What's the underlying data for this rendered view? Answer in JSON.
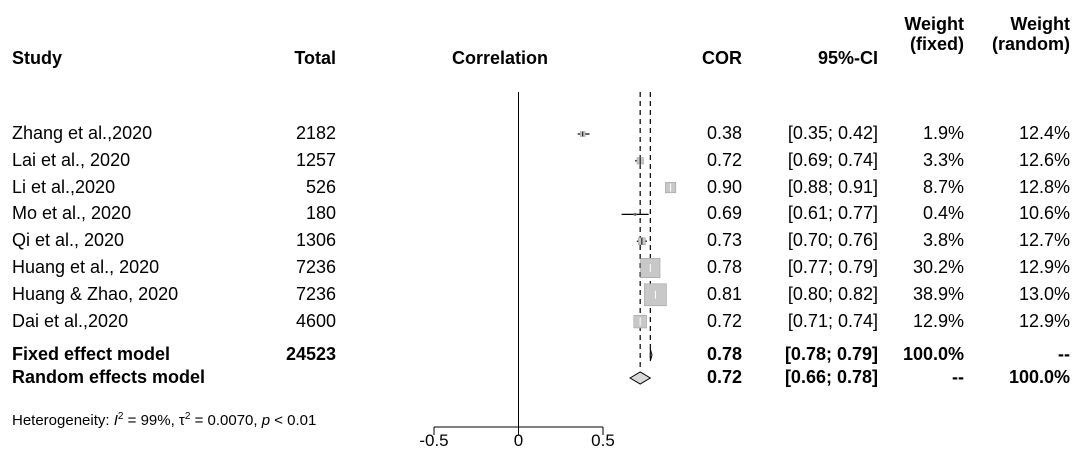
{
  "chart_data": {
    "type": "forest",
    "columns": {
      "study": "Study",
      "total": "Total",
      "correlation": "Correlation",
      "cor": "COR",
      "ci": "95%-CI",
      "weight_fixed_1": "Weight",
      "weight_fixed_2": "(fixed)",
      "weight_random_1": "Weight",
      "weight_random_2": "(random)"
    },
    "studies": [
      {
        "name": "Zhang et al.,2020",
        "total": "2182",
        "cor": 0.38,
        "lo": 0.35,
        "hi": 0.42,
        "cor_text": "0.38",
        "ci_text": "[0.35; 0.42]",
        "w_fixed": "1.9%",
        "w_random": "12.4%",
        "weight": 1.9
      },
      {
        "name": "Lai et al., 2020",
        "total": "1257",
        "cor": 0.72,
        "lo": 0.69,
        "hi": 0.74,
        "cor_text": "0.72",
        "ci_text": "[0.69; 0.74]",
        "w_fixed": "3.3%",
        "w_random": "12.6%",
        "weight": 3.3
      },
      {
        "name": "Li et al.,2020",
        "total": "526",
        "cor": 0.9,
        "lo": 0.88,
        "hi": 0.91,
        "cor_text": "0.90",
        "ci_text": "[0.88; 0.91]",
        "w_fixed": "8.7%",
        "w_random": "12.8%",
        "weight": 8.7
      },
      {
        "name": "Mo et al., 2020",
        "total": "180",
        "cor": 0.69,
        "lo": 0.61,
        "hi": 0.77,
        "cor_text": "0.69",
        "ci_text": "[0.61; 0.77]",
        "w_fixed": "0.4%",
        "w_random": "10.6%",
        "weight": 0.4
      },
      {
        "name": "Qi et al., 2020",
        "total": "1306",
        "cor": 0.73,
        "lo": 0.7,
        "hi": 0.76,
        "cor_text": "0.73",
        "ci_text": "[0.70; 0.76]",
        "w_fixed": "3.8%",
        "w_random": "12.7%",
        "weight": 3.8
      },
      {
        "name": "Huang et al., 2020",
        "total": "7236",
        "cor": 0.78,
        "lo": 0.77,
        "hi": 0.79,
        "cor_text": "0.78",
        "ci_text": "[0.77; 0.79]",
        "w_fixed": "30.2%",
        "w_random": "12.9%",
        "weight": 30.2
      },
      {
        "name": "Huang & Zhao, 2020",
        "total": "7236",
        "cor": 0.81,
        "lo": 0.8,
        "hi": 0.82,
        "cor_text": "0.81",
        "ci_text": "[0.80; 0.82]",
        "w_fixed": "38.9%",
        "w_random": "13.0%",
        "weight": 38.9
      },
      {
        "name": "Dai et al.,2020",
        "total": "4600",
        "cor": 0.72,
        "lo": 0.71,
        "hi": 0.74,
        "cor_text": "0.72",
        "ci_text": "[0.71; 0.74]",
        "w_fixed": "12.9%",
        "w_random": "12.9%",
        "weight": 12.9
      }
    ],
    "fixed": {
      "name": "Fixed effect model",
      "total": "24523",
      "cor": 0.78,
      "lo": 0.78,
      "hi": 0.79,
      "cor_text": "0.78",
      "ci_text": "[0.78; 0.79]",
      "w_fixed": "100.0%",
      "w_random": "--"
    },
    "random": {
      "name": "Random effects model",
      "total": "",
      "cor": 0.72,
      "lo": 0.66,
      "hi": 0.78,
      "cor_text": "0.72",
      "ci_text": "[0.66; 0.78]",
      "w_fixed": "--",
      "w_random": "100.0%"
    },
    "heterogeneity": {
      "prefix": "Heterogeneity: ",
      "i2_label": "I",
      "i2_value": " = 99%, ",
      "tau2_label": "τ",
      "tau2_value": " = 0.0070, ",
      "p_label": "p",
      "p_value": " < 0.01"
    },
    "xaxis": {
      "range": [
        -0.5,
        0.5
      ],
      "ticks": [
        -0.5,
        0,
        0.5
      ],
      "tick_labels": [
        "-0.5",
        "0",
        "0.5"
      ],
      "null_line": 0
    },
    "colors": {
      "ink": "#000000",
      "box": "#c8c8c8",
      "box_edge": "#a0a0a0",
      "diamond": "#d9d9d9"
    }
  }
}
